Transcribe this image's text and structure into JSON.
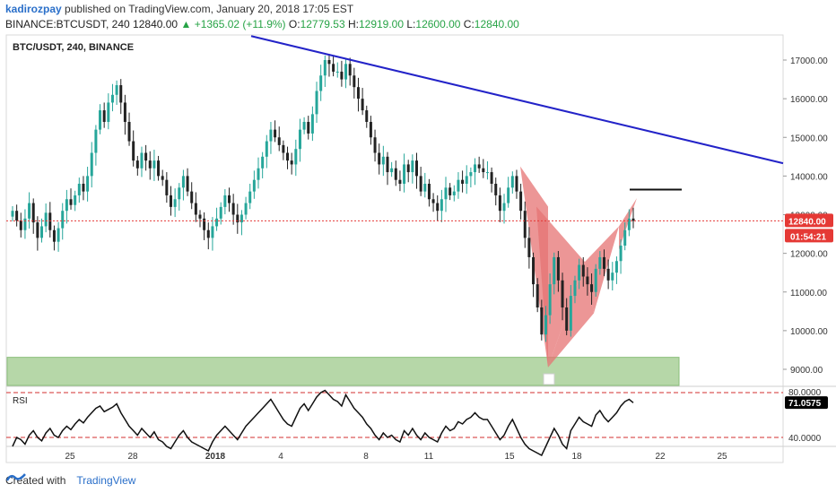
{
  "header": {
    "author": "kadirozpay",
    "published": "published on TradingView.com, January 20, 2018 17:05 EST",
    "symbol_line": "BINANCE:BTCUSDT, 240",
    "last": "12840.00",
    "change": "+1365.02 (+11.9%)",
    "o_label": "O:",
    "o_val": "12779.53",
    "h_label": "H:",
    "h_val": "12919.00",
    "l_label": "L:",
    "l_val": "12600.00",
    "c_label": "C:",
    "c_val": "12840.00"
  },
  "footer": {
    "created_with": "Created with",
    "brand": "TradingView"
  },
  "colors": {
    "up": "#26a69a",
    "down": "#222222",
    "trendline": "#2323c8",
    "pattern": "#e57373",
    "zone": "#b6d7a8",
    "price_tag": "#e53935",
    "rsi": "#111111",
    "rsi_bands": "#d32f2f"
  },
  "chart_data": {
    "type": "candlestick",
    "title": "BTC/USDT, 240, BINANCE",
    "price_axis": {
      "ticks": [
        17000,
        16000,
        15000,
        14000,
        13000,
        12000,
        11000,
        10000,
        9000
      ],
      "labels": [
        "17000.00",
        "16000.00",
        "15000.00",
        "14000.00",
        "13000.00",
        "12000.00",
        "11000.00",
        "10000.00",
        "9000.00"
      ]
    },
    "last_price_label": "12840.00",
    "countdown_label": "01:54:21",
    "time_axis": [
      "25",
      "28",
      "2018",
      "4",
      "8",
      "11",
      "15",
      "18",
      "22",
      "25"
    ],
    "rsi": {
      "label": "RSI",
      "ticks": [
        "80.0000",
        "40.0000"
      ],
      "current_label": "71.0575",
      "levels": [
        80,
        40
      ],
      "value": 71.0575
    },
    "trendline": {
      "from": {
        "time": "Jan 2",
        "price": 17620
      },
      "to": {
        "time": "Jan 27",
        "price": 14330
      }
    },
    "target_line": {
      "price": 13650
    },
    "support_zone": {
      "low": 8560,
      "high": 9310
    },
    "pattern_lows_highs": [
      14250,
      13210,
      9050,
      11780,
      10450,
      12700,
      13430
    ],
    "closes": [
      13100,
      12850,
      12600,
      12900,
      13300,
      12800,
      12400,
      12700,
      13050,
      12600,
      12300,
      12650,
      13100,
      13400,
      13250,
      13500,
      13800,
      13600,
      14000,
      14600,
      15200,
      15700,
      15400,
      15900,
      16100,
      16350,
      15900,
      15400,
      14900,
      14400,
      14200,
      14600,
      14400,
      14200,
      14400,
      14000,
      13900,
      13500,
      13200,
      13400,
      13700,
      14000,
      13600,
      13300,
      13000,
      12900,
      12600,
      12400,
      12700,
      12900,
      13200,
      13500,
      13300,
      13000,
      12800,
      13000,
      13300,
      13600,
      13900,
      14200,
      14500,
      14900,
      15200,
      15000,
      14800,
      14600,
      14400,
      14300,
      14700,
      15200,
      15400,
      15100,
      15600,
      16200,
      16600,
      17000,
      16900,
      16700,
      16700,
      16500,
      16900,
      16600,
      16300,
      16000,
      15700,
      15400,
      15000,
      14600,
      14300,
      14500,
      14100,
      14200,
      13900,
      13800,
      14300,
      14100,
      14400,
      14000,
      13600,
      13800,
      13400,
      13300,
      13100,
      13400,
      13700,
      13500,
      13600,
      13900,
      13800,
      14000,
      14100,
      14300,
      14200,
      14100,
      14100,
      13800,
      13500,
      13100,
      13300,
      13700,
      14000,
      13600,
      13100,
      12400,
      11900,
      11200,
      10600,
      9900,
      10400,
      11200,
      11900,
      11300,
      10600,
      10000,
      10900,
      11300,
      11700,
      11400,
      11200,
      11000,
      11600,
      11900,
      11600,
      11300,
      11500,
      11800,
      12200,
      12600,
      12900,
      12840
    ],
    "rsi_values": [
      32,
      40,
      38,
      34,
      42,
      46,
      40,
      37,
      44,
      48,
      42,
      40,
      46,
      50,
      47,
      52,
      56,
      53,
      58,
      62,
      66,
      68,
      63,
      65,
      67,
      70,
      62,
      56,
      50,
      46,
      42,
      48,
      44,
      40,
      45,
      38,
      36,
      32,
      30,
      36,
      42,
      46,
      40,
      36,
      34,
      32,
      30,
      28,
      36,
      42,
      46,
      50,
      46,
      42,
      38,
      44,
      50,
      54,
      58,
      62,
      66,
      70,
      74,
      68,
      62,
      56,
      52,
      50,
      58,
      66,
      70,
      64,
      70,
      76,
      80,
      82,
      78,
      74,
      72,
      68,
      78,
      72,
      66,
      62,
      58,
      52,
      48,
      42,
      38,
      44,
      40,
      42,
      38,
      36,
      46,
      42,
      48,
      42,
      38,
      44,
      40,
      38,
      36,
      44,
      50,
      46,
      48,
      54,
      52,
      56,
      58,
      62,
      58,
      56,
      56,
      50,
      44,
      38,
      42,
      50,
      56,
      48,
      40,
      34,
      30,
      28,
      26,
      24,
      32,
      40,
      48,
      42,
      34,
      30,
      46,
      52,
      58,
      54,
      52,
      50,
      60,
      64,
      58,
      54,
      58,
      62,
      68,
      72,
      74,
      71
    ]
  }
}
